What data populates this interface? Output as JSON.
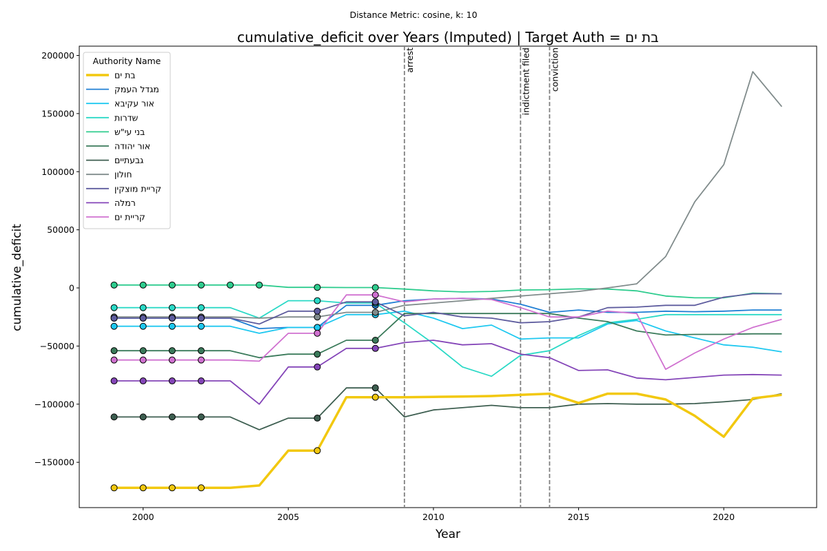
{
  "chart_data": {
    "type": "line",
    "suptitle": "Distance Metric: cosine, k: 10",
    "title": "cumulative_deficit over Years (Imputed) | Target Auth = בת ים",
    "xlabel": "Year",
    "ylabel": "cumulative_deficit",
    "xlim": [
      1997.8,
      2023.2
    ],
    "ylim": [
      -189000,
      208000
    ],
    "xticks": [
      2000,
      2005,
      2010,
      2015,
      2020
    ],
    "yticks": [
      -150000,
      -100000,
      -50000,
      0,
      50000,
      100000,
      150000,
      200000
    ],
    "ytick_labels": [
      "−150000",
      "−100000",
      "−50000",
      "0",
      "50000",
      "100000",
      "150000",
      "200000"
    ],
    "grid": false,
    "legend": {
      "title": "Authority Name",
      "placement": "top-left"
    },
    "x": [
      1999,
      2000,
      2001,
      2002,
      2003,
      2004,
      2005,
      2006,
      2007,
      2008,
      2009,
      2010,
      2011,
      2012,
      2013,
      2014,
      2015,
      2016,
      2017,
      2018,
      2019,
      2020,
      2021,
      2022
    ],
    "events": [
      {
        "year": 2009,
        "label": "arrest"
      },
      {
        "year": 2013,
        "label": "indictment filed"
      },
      {
        "year": 2014,
        "label": "conviction"
      }
    ],
    "series": [
      {
        "name": "בת ים",
        "color": "#f2c80f",
        "target": true,
        "imputed_years": [
          1999,
          2000,
          2001,
          2002,
          2006,
          2008
        ],
        "values": [
          -172000,
          -172000,
          -172000,
          -172000,
          -172000,
          -170000,
          -140000,
          -140000,
          -94000,
          -94000,
          -94000,
          -93700,
          -93500,
          -93000,
          -92000,
          -91000,
          -99000,
          -91000,
          -91000,
          -96000,
          -110000,
          -128000,
          -95000,
          -92000
        ]
      },
      {
        "name": "מגדל העמק",
        "color": "#1f7fd4",
        "target": false,
        "imputed_years": [
          1999,
          2000,
          2001,
          2002,
          2006,
          2008
        ],
        "values": [
          -26000,
          -26000,
          -26000,
          -26000,
          -26000,
          -35000,
          -34000,
          -34000,
          -15000,
          -15000,
          -11000,
          -9500,
          -9000,
          -9500,
          -14000,
          -21000,
          -19000,
          -21000,
          -21000,
          -20000,
          -20500,
          -20000,
          -19000,
          -19000
        ]
      },
      {
        "name": "אור עקיבא",
        "color": "#1ec8f0",
        "target": false,
        "imputed_years": [
          1999,
          2000,
          2001,
          2002,
          2006,
          2008
        ],
        "values": [
          -33000,
          -33000,
          -33000,
          -33000,
          -33000,
          -39000,
          -34000,
          -34000,
          -23000,
          -23000,
          -20000,
          -26000,
          -35000,
          -32000,
          -44000,
          -43000,
          -43000,
          -31000,
          -28000,
          -37000,
          -43000,
          -49000,
          -51000,
          -55000
        ]
      },
      {
        "name": "שדרות",
        "color": "#2ad9c6",
        "target": false,
        "imputed_years": [
          1999,
          2000,
          2001,
          2002,
          2006,
          2008
        ],
        "values": [
          -17000,
          -17000,
          -17000,
          -17000,
          -17000,
          -26000,
          -11000,
          -11000,
          -13000,
          -13000,
          -30000,
          -48000,
          -68000,
          -76000,
          -58000,
          -54000,
          -41000,
          -30000,
          -27000,
          -23000,
          -23000,
          -23000,
          -23000,
          -23000
        ]
      },
      {
        "name": "בני עי\"ש",
        "color": "#2ecc8e",
        "target": false,
        "imputed_years": [
          1999,
          2000,
          2001,
          2002,
          2003,
          2004,
          2006,
          2008
        ],
        "values": [
          2500,
          2500,
          2500,
          2500,
          2500,
          2500,
          500,
          500,
          300,
          300,
          -1000,
          -2500,
          -3500,
          -3000,
          -1800,
          -1500,
          -800,
          -1000,
          -2500,
          -7000,
          -8500,
          -8500,
          -4500,
          -5000
        ]
      },
      {
        "name": "אור יהודה",
        "color": "#3a7a5a",
        "target": false,
        "imputed_years": [
          1999,
          2000,
          2001,
          2002,
          2006,
          2008
        ],
        "values": [
          -54000,
          -54000,
          -54000,
          -54000,
          -54000,
          -60000,
          -57000,
          -57000,
          -45000,
          -45000,
          -22000,
          -22000,
          -22000,
          -22000,
          -22000,
          -22000,
          -26000,
          -29000,
          -37000,
          -40500,
          -40000,
          -40000,
          -39500,
          -39500
        ]
      },
      {
        "name": "גבעתיים",
        "color": "#3d5e50",
        "target": false,
        "imputed_years": [
          1999,
          2000,
          2001,
          2002,
          2006,
          2008
        ],
        "values": [
          -111000,
          -111000,
          -111000,
          -111000,
          -111000,
          -122000,
          -112000,
          -112000,
          -86000,
          -86000,
          -111000,
          -105000,
          -103000,
          -101000,
          -103000,
          -103000,
          -100000,
          -99500,
          -100000,
          -100000,
          -99500,
          -98000,
          -96000,
          -91000
        ]
      },
      {
        "name": "חולון",
        "color": "#808b8b",
        "target": false,
        "imputed_years": [
          1999,
          2000,
          2001,
          2002,
          2006,
          2008
        ],
        "values": [
          -25000,
          -25000,
          -25000,
          -25000,
          -25000,
          -26000,
          -25000,
          -25000,
          -21000,
          -21000,
          -15000,
          -13000,
          -11000,
          -9000,
          -7000,
          -5000,
          -3000,
          0,
          3500,
          27000,
          74000,
          106000,
          186000,
          156000
        ]
      },
      {
        "name": "קריית מוצקין",
        "color": "#5e5c9e",
        "target": false,
        "imputed_years": [
          1999,
          2000,
          2001,
          2002,
          2006,
          2008
        ],
        "values": [
          -26000,
          -26000,
          -26000,
          -26000,
          -26000,
          -31000,
          -20000,
          -20000,
          -12000,
          -12000,
          -24000,
          -21000,
          -25000,
          -26000,
          -30000,
          -29000,
          -25000,
          -17000,
          -16500,
          -15000,
          -15000,
          -8000,
          -5000,
          -5000
        ]
      },
      {
        "name": "רמלה",
        "color": "#8445b8",
        "target": false,
        "imputed_years": [
          1999,
          2000,
          2001,
          2002,
          2006,
          2008
        ],
        "values": [
          -80000,
          -80000,
          -80000,
          -80000,
          -80000,
          -100000,
          -68000,
          -68000,
          -52000,
          -52000,
          -47000,
          -45000,
          -49000,
          -48000,
          -57000,
          -60000,
          -71000,
          -70500,
          -77500,
          -79000,
          -77000,
          -75000,
          -74500,
          -75000
        ]
      },
      {
        "name": "קריית ים",
        "color": "#d071d0",
        "target": false,
        "imputed_years": [
          1999,
          2000,
          2001,
          2002,
          2006,
          2008
        ],
        "values": [
          -62000,
          -62000,
          -62000,
          -62000,
          -62000,
          -63000,
          -39000,
          -39000,
          -6000,
          -6000,
          -12000,
          -9500,
          -9000,
          -10000,
          -17000,
          -25000,
          -25000,
          -20000,
          -22000,
          -70000,
          -56000,
          -44000,
          -34000,
          -27000
        ]
      }
    ]
  }
}
